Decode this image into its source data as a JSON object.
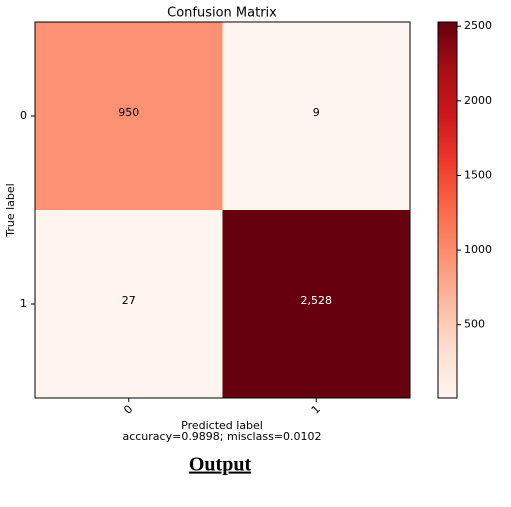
{
  "chart_data": {
    "type": "heatmap",
    "title": "Confusion Matrix",
    "x_categories": [
      "0",
      "1"
    ],
    "y_categories": [
      "0",
      "1"
    ],
    "values": [
      [
        950,
        9
      ],
      [
        27,
        2528
      ]
    ],
    "value_labels": [
      [
        "950",
        "9"
      ],
      [
        "27",
        "2,528"
      ]
    ],
    "xlabel": "Predicted label",
    "note": "accuracy=0.9898; misclass=0.0102",
    "ylabel": "True label",
    "colormap": "Reds",
    "colorbar_lim": [
      9,
      2528
    ],
    "colorbar_ticks": [
      500,
      1000,
      1500,
      2000,
      2500
    ]
  },
  "caption": "Output"
}
